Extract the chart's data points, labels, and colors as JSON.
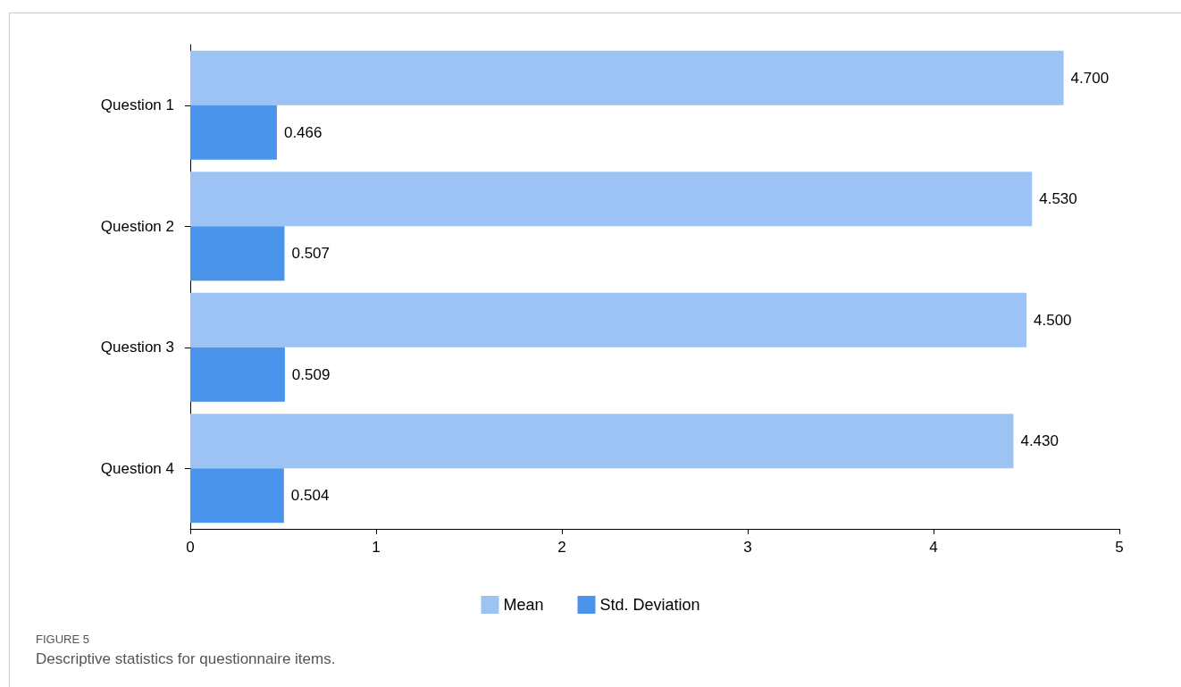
{
  "chart_data": {
    "type": "bar",
    "orientation": "horizontal",
    "categories": [
      "Question 1",
      "Question 2",
      "Question 3",
      "Question 4"
    ],
    "series": [
      {
        "name": "Mean",
        "color": "#9dc3f5",
        "values": [
          4.7,
          4.53,
          4.5,
          4.43
        ],
        "value_labels": [
          "4.700",
          "4.530",
          "4.500",
          "4.430"
        ]
      },
      {
        "name": "Std. Deviation",
        "color": "#4a94ec",
        "values": [
          0.466,
          0.507,
          0.509,
          0.504
        ],
        "value_labels": [
          "0.466",
          "0.507",
          "0.509",
          "0.504"
        ]
      }
    ],
    "xlim": [
      0,
      5
    ],
    "xticks": [
      0,
      1,
      2,
      3,
      4,
      5
    ],
    "grid": false,
    "legend": "bottom",
    "annotations": [
      "FIGURE 5",
      "Descriptive statistics for questionnaire items."
    ]
  }
}
